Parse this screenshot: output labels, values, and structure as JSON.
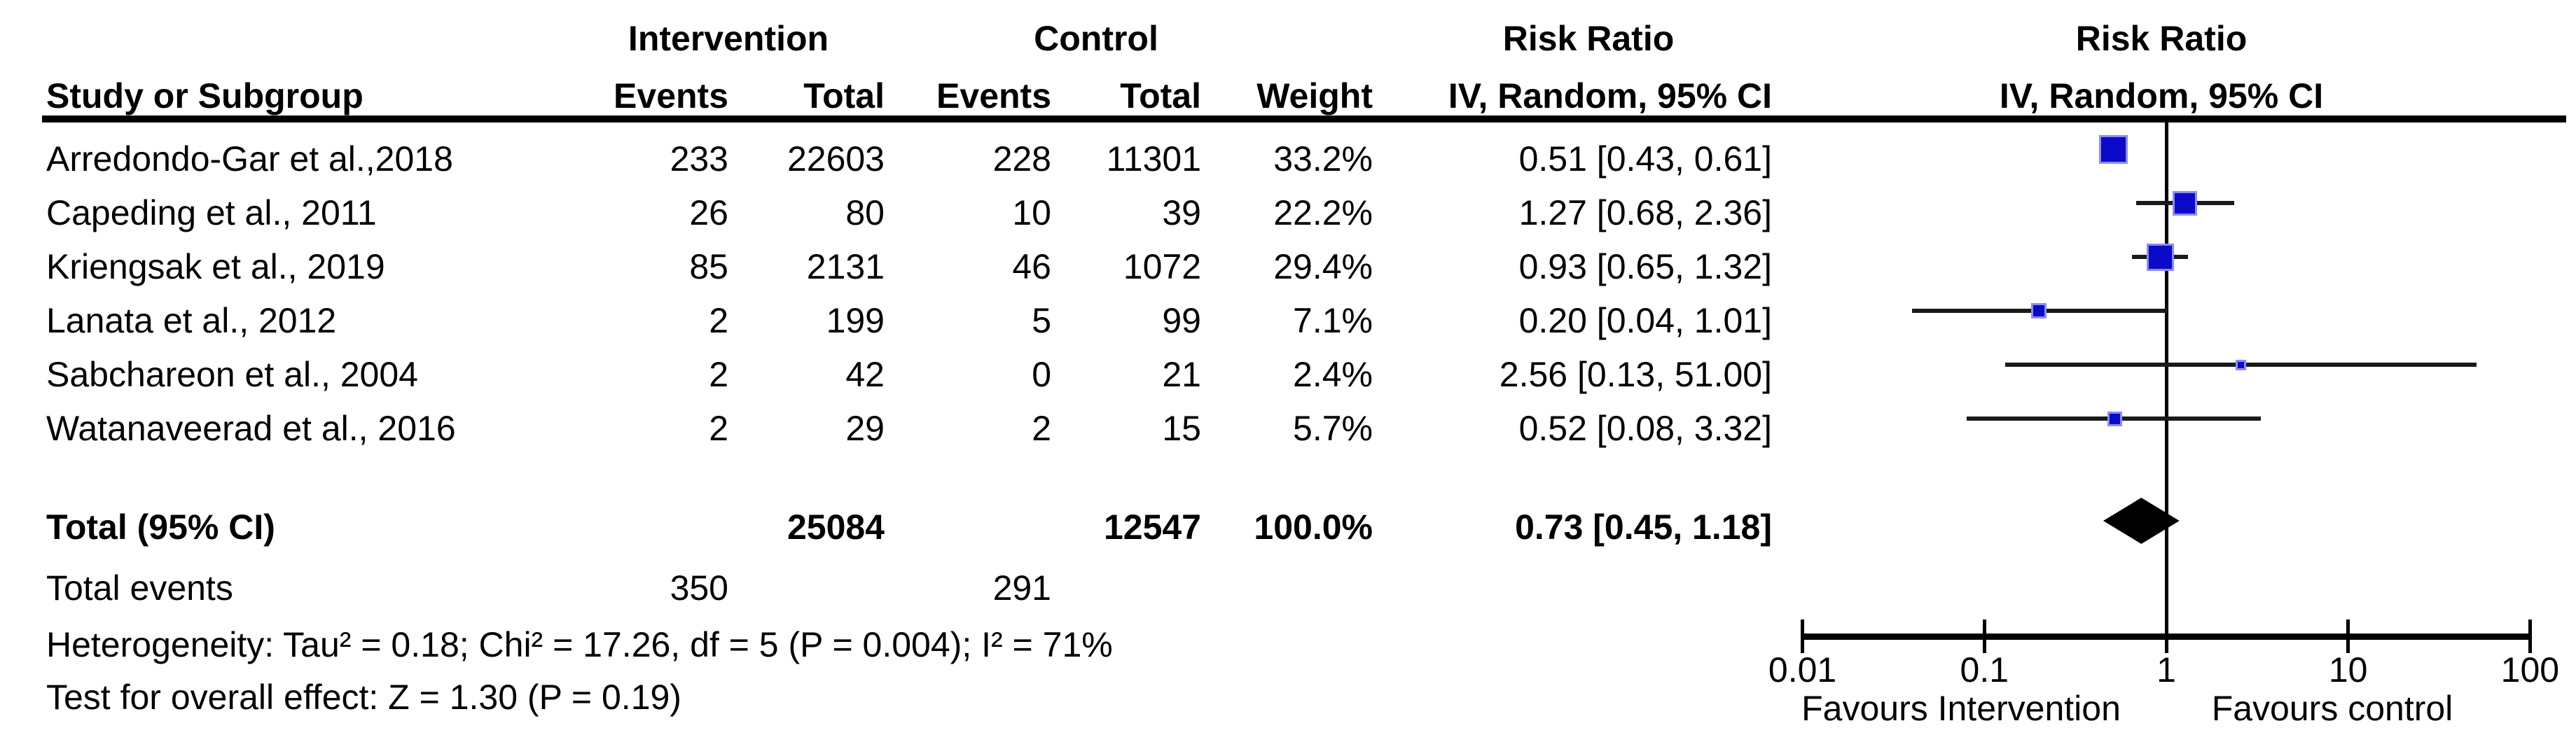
{
  "header": {
    "group_row": {
      "intervention": "Intervention",
      "control": "Control",
      "risk_ratio": "Risk Ratio"
    },
    "col_row": {
      "study": "Study or Subgroup",
      "events": "Events",
      "total": "Total",
      "weight": "Weight",
      "method_ci": "IV, Random, 95% CI"
    }
  },
  "rows": [
    {
      "study": "Arredondo-Gar et al.,2018",
      "int_events": "233",
      "int_total": "22603",
      "ctl_events": "228",
      "ctl_total": "11301",
      "weight": "33.2%",
      "rr_ci": "0.51 [0.43, 0.61]"
    },
    {
      "study": "Capeding et al., 2011",
      "int_events": "26",
      "int_total": "80",
      "ctl_events": "10",
      "ctl_total": "39",
      "weight": "22.2%",
      "rr_ci": "1.27 [0.68, 2.36]"
    },
    {
      "study": "Kriengsak et al., 2019",
      "int_events": "85",
      "int_total": "2131",
      "ctl_events": "46",
      "ctl_total": "1072",
      "weight": "29.4%",
      "rr_ci": "0.93 [0.65, 1.32]"
    },
    {
      "study": "Lanata et al., 2012",
      "int_events": "2",
      "int_total": "199",
      "ctl_events": "5",
      "ctl_total": "99",
      "weight": "7.1%",
      "rr_ci": "0.20 [0.04, 1.01]"
    },
    {
      "study": "Sabchareon et al., 2004",
      "int_events": "2",
      "int_total": "42",
      "ctl_events": "0",
      "ctl_total": "21",
      "weight": "2.4%",
      "rr_ci": "2.56 [0.13, 51.00]"
    },
    {
      "study": "Watanaveerad et al., 2016",
      "int_events": "2",
      "int_total": "29",
      "ctl_events": "2",
      "ctl_total": "15",
      "weight": "5.7%",
      "rr_ci": "0.52 [0.08, 3.32]"
    }
  ],
  "totals": {
    "label": "Total (95% CI)",
    "int_total": "25084",
    "ctl_total": "12547",
    "weight": "100.0%",
    "rr_ci": "0.73 [0.45, 1.18]",
    "events_label": "Total events",
    "int_events": "350",
    "ctl_events": "291"
  },
  "stats": {
    "heterogeneity": "Heterogeneity: Tau² = 0.18; Chi² = 17.26, df = 5 (P = 0.004); I² = 71%",
    "overall_effect": "Test for overall effect: Z = 1.30 (P = 0.19)"
  },
  "axis": {
    "tick_labels": [
      "0.01",
      "0.1",
      "1",
      "10",
      "100"
    ],
    "favours_left": "Favours Intervention",
    "favours_right": "Favours control"
  },
  "colors": {
    "marker_blue": "#0a0ac8",
    "marker_halo": "#8c8cf0",
    "ink": "#000000"
  },
  "chart_data": {
    "type": "scatter",
    "subtype": "forest-plot",
    "title": "Risk Ratio",
    "effect_measure": "IV, Random, 95% CI",
    "x_scale": "log10",
    "xlim": [
      0.01,
      100
    ],
    "x_ticks": [
      0.01,
      0.1,
      1,
      10,
      100
    ],
    "null_line": 1,
    "studies": [
      {
        "name": "Arredondo-Gar et al.,2018",
        "rr": 0.51,
        "ci_low": 0.43,
        "ci_high": 0.61,
        "weight_pct": 33.2
      },
      {
        "name": "Capeding et al., 2011",
        "rr": 1.27,
        "ci_low": 0.68,
        "ci_high": 2.36,
        "weight_pct": 22.2
      },
      {
        "name": "Kriengsak et al., 2019",
        "rr": 0.93,
        "ci_low": 0.65,
        "ci_high": 1.32,
        "weight_pct": 29.4
      },
      {
        "name": "Lanata et al., 2012",
        "rr": 0.2,
        "ci_low": 0.04,
        "ci_high": 1.01,
        "weight_pct": 7.1
      },
      {
        "name": "Sabchareon et al., 2004",
        "rr": 2.56,
        "ci_low": 0.13,
        "ci_high": 51.0,
        "weight_pct": 2.4
      },
      {
        "name": "Watanaveerad et al., 2016",
        "rr": 0.52,
        "ci_low": 0.08,
        "ci_high": 3.32,
        "weight_pct": 5.7
      }
    ],
    "total": {
      "rr": 0.73,
      "ci_low": 0.45,
      "ci_high": 1.18,
      "marker": "diamond"
    }
  }
}
